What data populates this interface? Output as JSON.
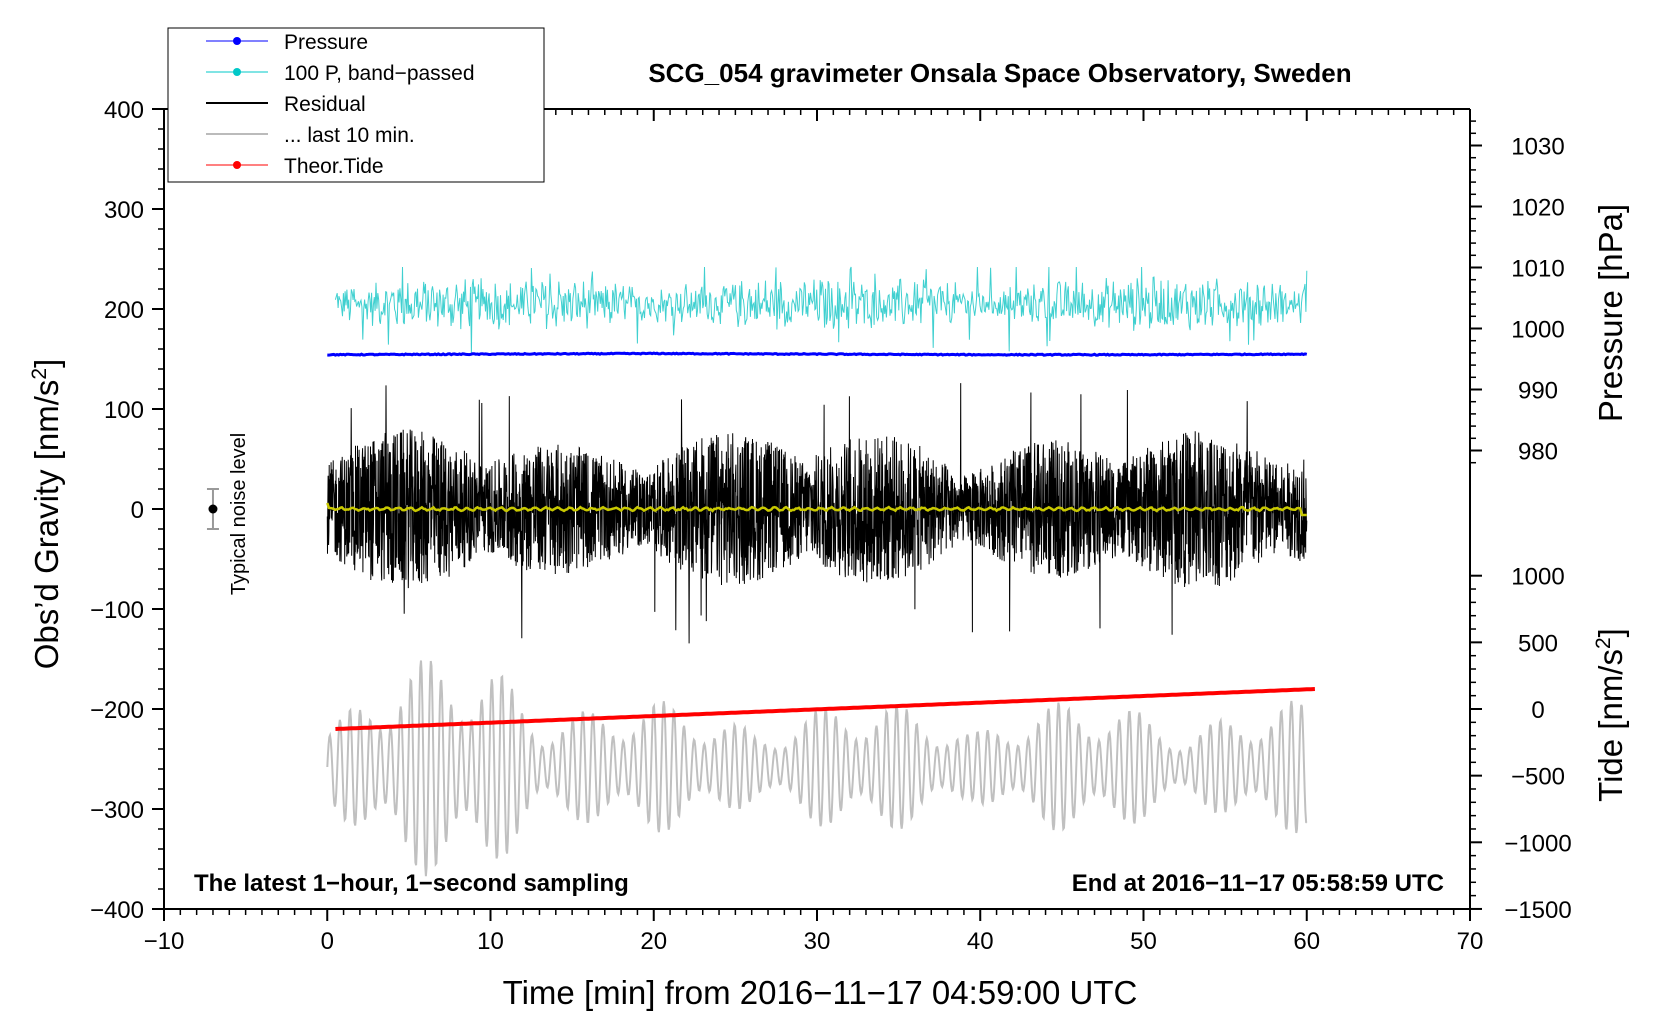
{
  "chart_data": {
    "type": "line",
    "title": "SCG_054 gravimeter Onsala Space Observatory, Sweden",
    "xlabel": "Time [min] from 2016−11−17 04:59:00 UTC",
    "ylabel": {
      "prefix": "Obs’d Gravity [nm/s",
      "sup": "2",
      "suffix": "]"
    },
    "ylabel_right_top": "Pressure [hPa]",
    "ylabel_right_bottom": {
      "prefix": "Tide [nm/s",
      "sup": "2",
      "suffix": "]"
    },
    "xlim": [
      -10,
      70
    ],
    "ylim": [
      -400,
      400
    ],
    "xticks": [
      -10,
      0,
      10,
      20,
      30,
      40,
      50,
      60,
      70
    ],
    "xtick_labels": [
      "−10",
      "0",
      "10",
      "20",
      "30",
      "40",
      "50",
      "60",
      "70"
    ],
    "yticks": [
      -400,
      -300,
      -200,
      -100,
      0,
      100,
      200,
      300,
      400
    ],
    "ytick_labels": [
      "−400",
      "−300",
      "−200",
      "−100",
      "0",
      "100",
      "200",
      "300",
      "400"
    ],
    "pressure_axis": {
      "ticks": [
        980,
        990,
        1000,
        1010,
        1020,
        1030
      ],
      "tick_labels": [
        "980",
        "990",
        "1000",
        "1010",
        "1020",
        "1030"
      ],
      "gravity_at_980": 58.5,
      "gravity_per_hPa": 6.1
    },
    "tide_axis": {
      "ticks": [
        -1500,
        -1000,
        -500,
        0,
        500,
        1000
      ],
      "tick_labels": [
        "−1500",
        "−1000",
        "−500",
        "0",
        "500",
        "1000"
      ],
      "gravity_at_0": -200,
      "gravity_per_unit": 0.1333
    },
    "annotation_left": "The latest 1−hour, 1−second sampling",
    "annotation_right": "End at 2016−11−17 05:58:59 UTC",
    "noise_level": {
      "label": "Typical noise level",
      "x": -7,
      "center": 0,
      "half_range": 20
    },
    "legend": [
      {
        "label": "Pressure",
        "color": "#0000ff",
        "marker": true
      },
      {
        "label": "100 P, band−passed",
        "color": "#00c8c8",
        "marker": true
      },
      {
        "label": "Residual",
        "color": "#000000",
        "marker": false
      },
      {
        "label": "... last 10 min.",
        "color": "#bbbbbb",
        "marker": false
      },
      {
        "label": "Theor.Tide",
        "color": "#ff0000",
        "marker": true
      }
    ],
    "series": [
      {
        "name": "Pressure",
        "color": "#0000ff",
        "axis": "pressure",
        "x_range": [
          0,
          60
        ],
        "values_hPa": [
          995.7,
          995.8,
          995.9,
          995.8,
          995.7,
          995.7,
          995.8
        ]
      },
      {
        "name": "100 P, band−passed",
        "color": "#40d0d0",
        "axis": "gravity",
        "x_range": [
          0.5,
          60
        ],
        "center": 205,
        "min": 145,
        "max": 242
      },
      {
        "name": "Residual",
        "color": "#000000",
        "axis": "gravity",
        "x_range": [
          0,
          60
        ],
        "center": 0,
        "min": -137,
        "max": 138
      },
      {
        "name": "Residual smoothed",
        "color": "#c8c800",
        "axis": "gravity",
        "x_range": [
          0,
          60
        ],
        "center": 0
      },
      {
        "name": "... last 10 min.",
        "color": "#c0c0c0",
        "axis": "gravity",
        "x_range": [
          0,
          60
        ],
        "center": -258,
        "min": -372,
        "max": -108
      },
      {
        "name": "Theor.Tide",
        "color": "#ff0000",
        "axis": "tide",
        "x_range": [
          0.5,
          60.5
        ],
        "values": [
          -150,
          150
        ]
      }
    ],
    "colors": {
      "pressure": "#0000ff",
      "bandpassed": "#40d0d0",
      "residual": "#000000",
      "smoothed": "#c8c800",
      "last10": "#c0c0c0",
      "tide": "#ff0000"
    }
  }
}
